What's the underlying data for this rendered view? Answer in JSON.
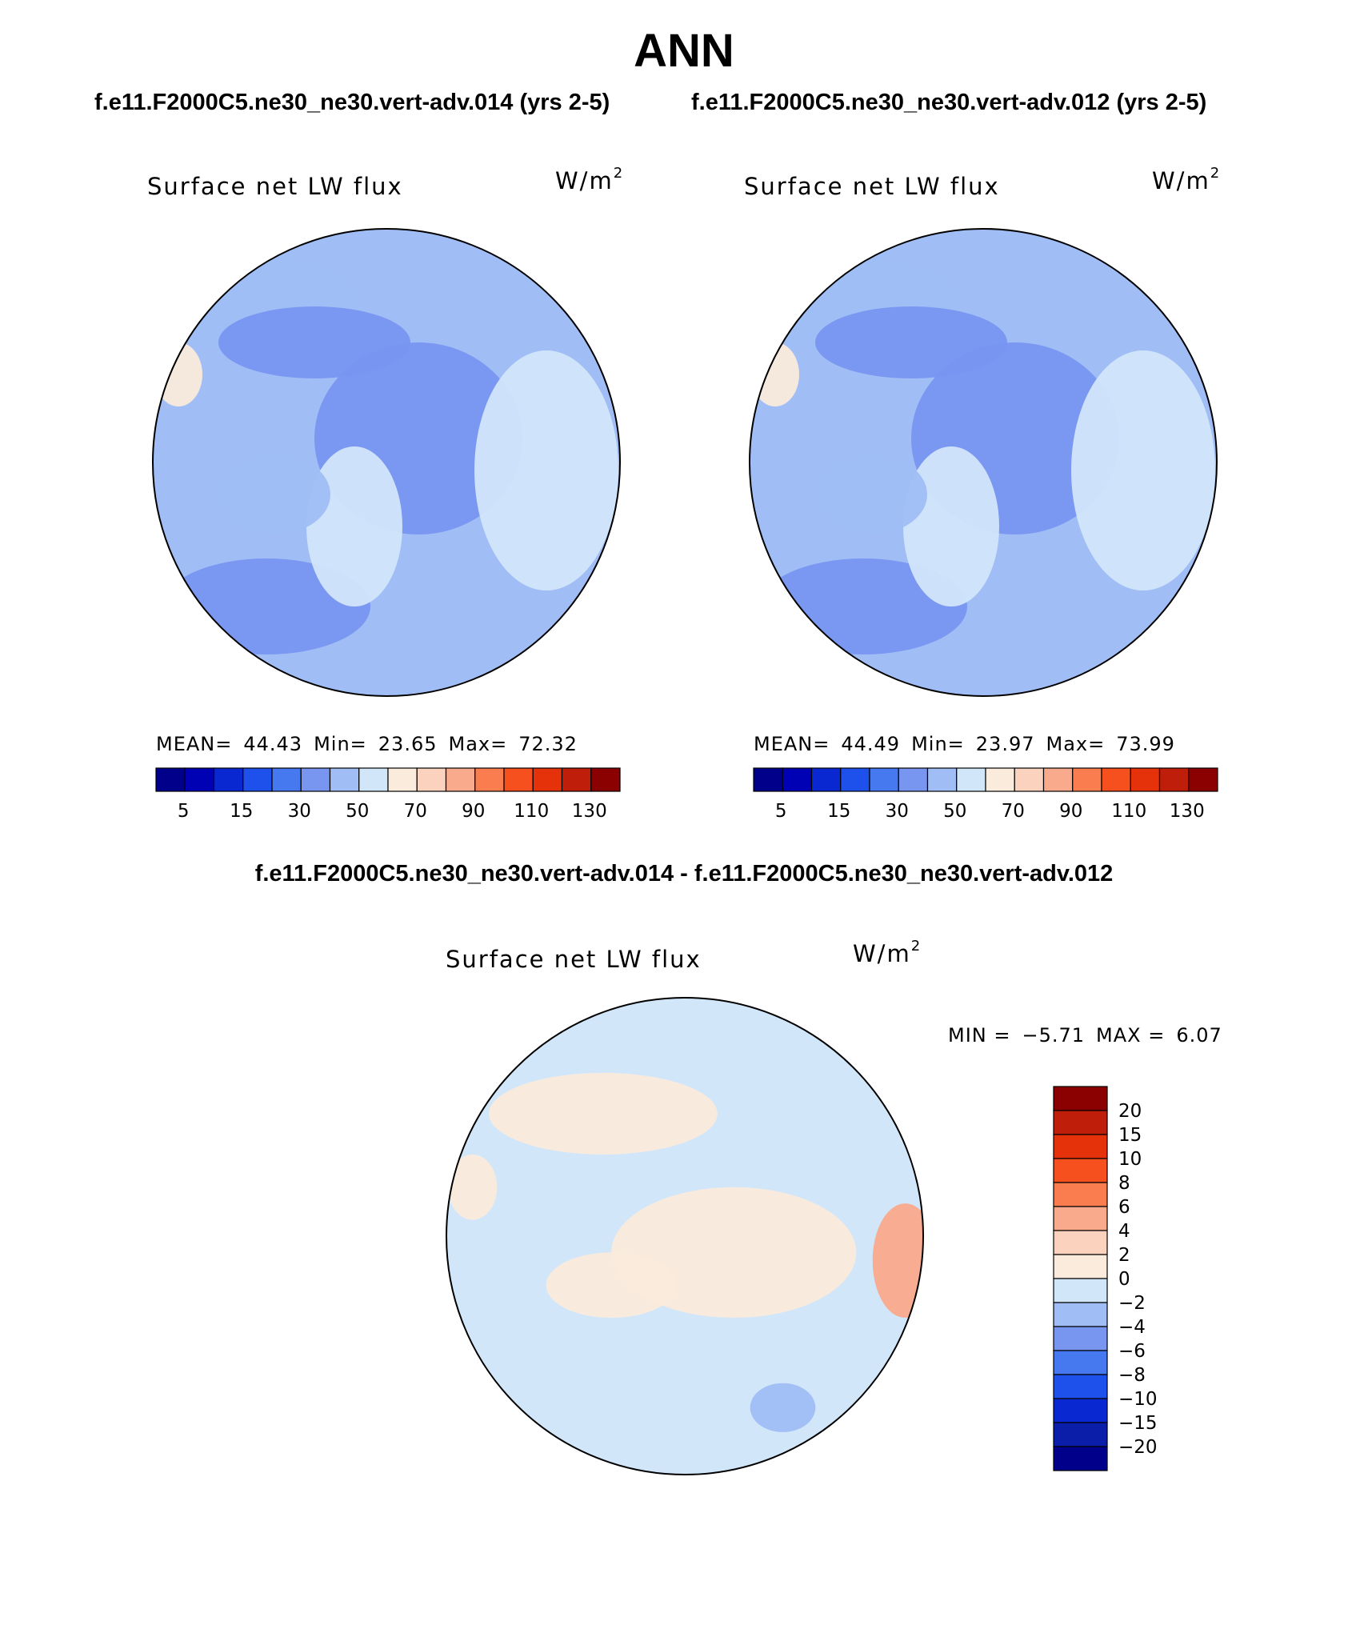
{
  "title": "ANN",
  "case_titles": [
    "f.e11.F2000C5.ne30_ne30.vert-adv.014 (yrs 2-5)",
    "f.e11.F2000C5.ne30_ne30.vert-adv.012 (yrs 2-5)"
  ],
  "diff_title": "f.e11.F2000C5.ne30_ne30.vert-adv.014 - f.e11.F2000C5.ne30_ne30.vert-adv.012",
  "colors": {
    "abs_palette": [
      "#00008b",
      "#0000b4",
      "#0a28d2",
      "#1e50eb",
      "#4678f0",
      "#7896f0",
      "#a0bef5",
      "#d2e6fa",
      "#faebdc",
      "#fad2be",
      "#faaa8c",
      "#fa7d50",
      "#f5501e",
      "#e6320a",
      "#be1e0a",
      "#8b0000"
    ],
    "diff_palette": [
      "#00008b",
      "#0a1eaa",
      "#0a28d2",
      "#1e50eb",
      "#4678f0",
      "#7896f0",
      "#a0bef5",
      "#d2e6fa",
      "#faebdc",
      "#fad2be",
      "#faaa8c",
      "#fa7d50",
      "#f5501e",
      "#e6320a",
      "#be1e0a",
      "#8b0000"
    ]
  },
  "chart_data": [
    {
      "type": "polar_contour_map",
      "panel_title": "Surface net LW flux",
      "units_base": "W/m",
      "units_exp": "2",
      "stats": {
        "mean_label": "MEAN=",
        "mean": "44.43",
        "min_label": "Min=",
        "min": "23.65",
        "max_label": "Max=",
        "max": "72.32"
      },
      "colorbar_ticks": [
        "5",
        "15",
        "30",
        "50",
        "70",
        "90",
        "110",
        "130"
      ],
      "levels": [
        5,
        10,
        15,
        20,
        30,
        40,
        50,
        60,
        70,
        80,
        90,
        100,
        110,
        120,
        130
      ]
    },
    {
      "type": "polar_contour_map",
      "panel_title": "Surface net LW flux",
      "units_base": "W/m",
      "units_exp": "2",
      "stats": {
        "mean_label": "MEAN=",
        "mean": "44.49",
        "min_label": "Min=",
        "min": "23.97",
        "max_label": "Max=",
        "max": "73.99"
      },
      "colorbar_ticks": [
        "5",
        "15",
        "30",
        "50",
        "70",
        "90",
        "110",
        "130"
      ],
      "levels": [
        5,
        10,
        15,
        20,
        30,
        40,
        50,
        60,
        70,
        80,
        90,
        100,
        110,
        120,
        130
      ]
    },
    {
      "type": "polar_contour_map",
      "panel_title": "Surface net LW flux",
      "units_base": "W/m",
      "units_exp": "2",
      "stats": {
        "min_label": "MIN =",
        "min": "−5.71",
        "max_label": "MAX =",
        "max": "6.07"
      },
      "colorbar_ticks": [
        "20",
        "15",
        "10",
        "8",
        "6",
        "4",
        "2",
        "0",
        "−2",
        "−4",
        "−6",
        "−8",
        "−10",
        "−15",
        "−20"
      ],
      "levels": [
        20,
        15,
        10,
        8,
        6,
        4,
        2,
        0,
        -2,
        -4,
        -6,
        -8,
        -10,
        -15,
        -20
      ]
    }
  ]
}
